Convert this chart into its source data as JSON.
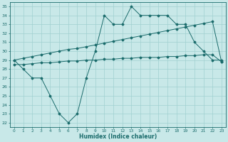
{
  "x": [
    0,
    1,
    2,
    3,
    4,
    5,
    6,
    7,
    8,
    9,
    10,
    11,
    12,
    13,
    14,
    15,
    16,
    17,
    18,
    19,
    20,
    21,
    22,
    23
  ],
  "line_jagged": [
    29,
    28,
    27,
    27,
    25,
    23,
    22,
    23,
    27,
    30,
    34,
    33,
    33,
    35,
    34,
    34,
    34,
    34,
    33,
    33,
    31,
    30,
    29,
    29
  ],
  "line_upper": [
    29.0,
    29.2,
    29.4,
    29.6,
    29.8,
    30.0,
    30.2,
    30.3,
    30.5,
    30.7,
    30.9,
    31.1,
    31.3,
    31.5,
    31.7,
    31.9,
    32.1,
    32.3,
    32.5,
    32.7,
    32.9,
    33.1,
    33.3,
    28.8
  ],
  "line_lower": [
    28.5,
    28.5,
    28.6,
    28.7,
    28.7,
    28.8,
    28.9,
    28.9,
    29.0,
    29.0,
    29.1,
    29.1,
    29.2,
    29.2,
    29.3,
    29.3,
    29.3,
    29.4,
    29.4,
    29.5,
    29.5,
    29.6,
    29.6,
    28.8
  ],
  "ylim_min": 21.5,
  "ylim_max": 35.5,
  "xlim_min": -0.5,
  "xlim_max": 23.5,
  "yticks": [
    22,
    23,
    24,
    25,
    26,
    27,
    28,
    29,
    30,
    31,
    32,
    33,
    34,
    35
  ],
  "xticks": [
    0,
    1,
    2,
    3,
    4,
    5,
    6,
    7,
    8,
    9,
    10,
    11,
    12,
    13,
    14,
    15,
    16,
    17,
    18,
    19,
    20,
    21,
    22,
    23
  ],
  "xlabel": "Humidex (Indice chaleur)",
  "line_color": "#1a6b6b",
  "bg_color": "#c8e8e8",
  "grid_color": "#a0d0d0"
}
